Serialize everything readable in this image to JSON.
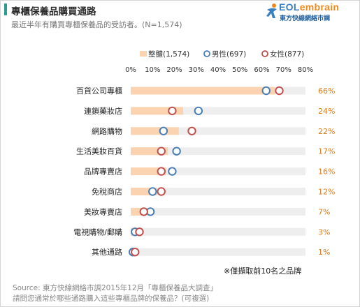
{
  "header": {
    "title": "專櫃保養品購買通路",
    "subtitle": "最近半年有購買專櫃保養品的受訪者。(N=1,574)"
  },
  "logo": {
    "brand_part1": "EOL",
    "brand_part2": "embrain",
    "tagline": "東方快線網絡市調",
    "colors": {
      "blue": "#3a7fc1",
      "orange": "#f08a1c"
    }
  },
  "chart_data": {
    "type": "bar",
    "categories": [
      "百貨公司專櫃",
      "連鎖藥妝店",
      "網路購物",
      "生活美妝百貨",
      "品牌專賣店",
      "免稅商店",
      "美妝專賣店",
      "電視購物/郵購",
      "其他通路"
    ],
    "series": [
      {
        "name": "整體(1,574)",
        "kind": "bar",
        "values": [
          66,
          24,
          22,
          17,
          16,
          12,
          7,
          3,
          1
        ],
        "color": "#fbd3b0"
      },
      {
        "name": "男性(697)",
        "kind": "marker",
        "values": [
          62,
          31,
          15,
          21,
          19,
          10,
          9,
          2,
          1
        ],
        "color": "#4a7fb5"
      },
      {
        "name": "女性(877)",
        "kind": "marker",
        "values": [
          68,
          19,
          28,
          14,
          14,
          14,
          6,
          4,
          2
        ],
        "color": "#c0504d"
      }
    ],
    "value_labels": [
      "66%",
      "24%",
      "22%",
      "17%",
      "16%",
      "12%",
      "7%",
      "3%",
      "1%"
    ],
    "x_ticks": [
      "0%",
      "10%",
      "20%",
      "30%",
      "40%",
      "50%",
      "60%",
      "70%",
      "80%"
    ],
    "xlim": [
      0,
      80
    ],
    "track_color": "#eeeeee",
    "value_label_color": "#e07b1a",
    "legend_position": "top"
  },
  "footer": {
    "note": "※僅擷取前10名之品牌",
    "source": "Source: 東方快線網絡市調2015年12月「專櫃保養品大調查」",
    "question": "請問您通常於哪些通路購入這些專櫃品牌的保養品？(可複選)"
  }
}
